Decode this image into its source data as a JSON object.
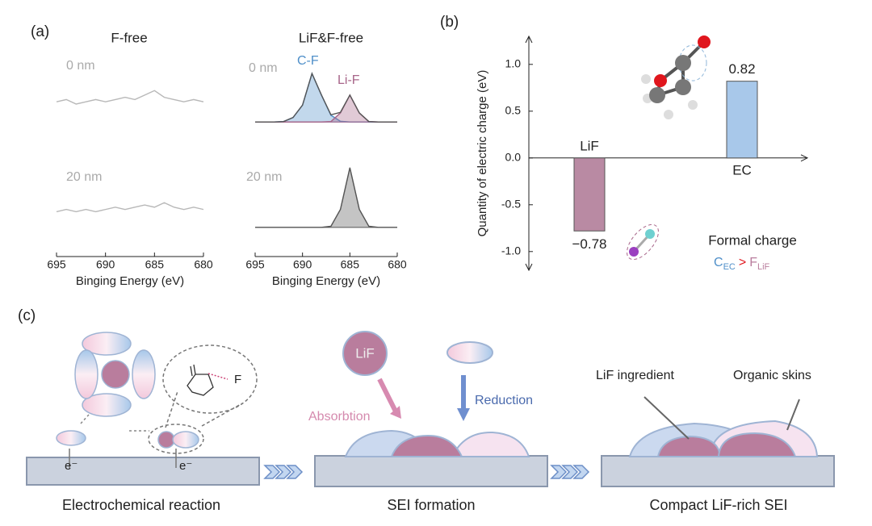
{
  "panel_labels": [
    "(a)",
    "(b)",
    "(c)"
  ],
  "chart_data": [
    {
      "type": "line",
      "title": "F-free",
      "x_label": "Binging Energy (eV)",
      "x": [
        695,
        694,
        693,
        692,
        691,
        690,
        689,
        688,
        687,
        686,
        685,
        684,
        683,
        682,
        681,
        680
      ],
      "series": [
        {
          "name": "0 nm",
          "color": "#b8b8b8",
          "values": [
            69,
            70,
            68,
            69,
            70,
            69,
            70,
            71,
            70,
            72,
            74,
            71,
            70,
            69,
            70,
            69
          ]
        },
        {
          "name": "20 nm",
          "color": "#b8b8b8",
          "values": [
            20,
            21,
            20,
            21,
            20,
            21,
            22,
            21,
            22,
            23,
            22,
            24,
            22,
            21,
            22,
            21
          ]
        }
      ],
      "xlim": [
        695,
        680
      ],
      "xticks": [
        695,
        690,
        685,
        680
      ],
      "ylim": [
        0,
        100
      ]
    },
    {
      "type": "line",
      "title": "LiF&F-free",
      "x_label": "Binging Energy (eV)",
      "x": [
        695,
        694,
        693,
        692,
        691,
        690,
        689,
        688,
        687,
        686,
        685,
        684,
        683,
        682,
        681,
        680
      ],
      "series": [
        {
          "name": "C-F",
          "color": "#4f8fc9",
          "fill": true,
          "values": [
            60,
            60,
            60,
            60.2,
            62,
            67.5,
            81.6,
            72,
            63,
            60.3,
            60,
            60,
            60,
            60,
            60,
            60
          ]
        },
        {
          "name": "Li-F",
          "color": "#a8668a",
          "fill": true,
          "values": [
            60,
            60,
            60,
            60,
            60,
            60,
            60,
            60,
            60.2,
            64,
            72,
            64,
            60.2,
            60,
            60,
            60
          ]
        },
        {
          "name": "0 nm",
          "color": "#555555",
          "values": [
            60,
            60,
            60,
            60.2,
            62,
            67.5,
            81.6,
            72,
            63.2,
            64.3,
            72,
            64,
            60.2,
            60,
            60,
            60
          ]
        },
        {
          "name": "20 nm",
          "color": "#555555",
          "fill": true,
          "values": [
            13,
            13,
            13,
            13,
            13,
            13,
            13,
            13,
            13.5,
            21,
            39.6,
            21,
            13.5,
            13,
            13,
            13
          ]
        }
      ],
      "xlim": [
        695,
        680
      ],
      "xticks": [
        695,
        690,
        685,
        680
      ],
      "ylim": [
        0,
        100
      ]
    },
    {
      "type": "bar",
      "y_label": "Quantity of electric charge (eV)",
      "categories": [
        "LiF",
        "EC"
      ],
      "values": [
        -0.78,
        0.82
      ],
      "value_labels": [
        "−0.78",
        "0.82"
      ],
      "colors": [
        "#b98aa3",
        "#a8c8ea"
      ],
      "ylim": [
        -1.2,
        1.3
      ],
      "yticks": [
        {
          "value": 1,
          "label": "1.0"
        },
        {
          "value": 0.5,
          "label": "0.5"
        },
        {
          "value": 0,
          "label": "0.0"
        },
        {
          "value": -0.5,
          "label": "-0.5"
        },
        {
          "value": -1,
          "label": "-1.0"
        }
      ],
      "annotation": {
        "title": "Formal charge",
        "c": "C",
        "c_sub": "EC",
        "gt": ">",
        "f": "F",
        "f_sub": "LiF"
      }
    }
  ],
  "diagram": {
    "stage1": "Electrochemical reaction",
    "stage2": "SEI formation",
    "stage3": "Compact LiF-rich SEI",
    "electron": "e⁻",
    "fluorine": "F",
    "lif": "LiF",
    "absorption": "Absorbtion",
    "reduction": "Reduction",
    "lif_ingredient": "LiF ingredient",
    "organic_skins": "Organic skins"
  }
}
